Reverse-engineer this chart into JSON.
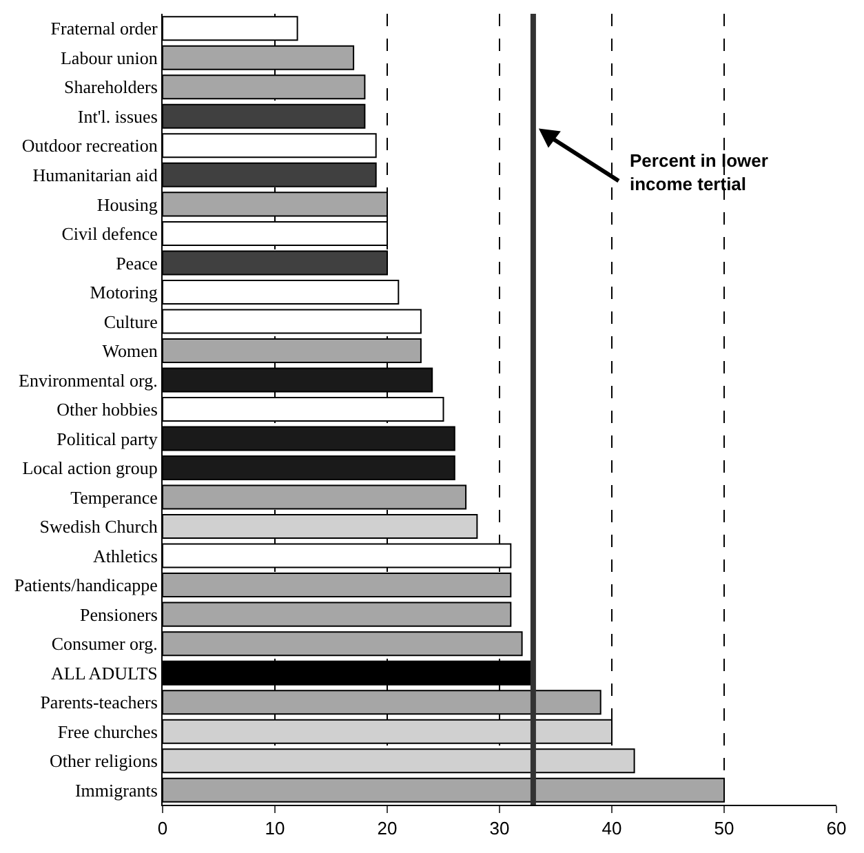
{
  "chart_data": {
    "type": "bar",
    "orientation": "horizontal",
    "categories": [
      "Fraternal order",
      "Labour union",
      "Shareholders",
      "Int'l. issues",
      "Outdoor recreation",
      "Humanitarian aid",
      "Housing",
      "Civil defence",
      "Peace",
      "Motoring",
      "Culture",
      "Women",
      "Environmental org.",
      "Other hobbies",
      "Political party",
      "Local action group",
      "Temperance",
      "Swedish Church",
      "Athletics",
      "Patients/handicappe",
      "Pensioners",
      "Consumer org.",
      "ALL ADULTS",
      "Parents-teachers",
      "Free churches",
      "Other religions",
      "Immigrants"
    ],
    "values": [
      12,
      17,
      18,
      18,
      19,
      19,
      20,
      20,
      20,
      21,
      23,
      23,
      24,
      25,
      26,
      26,
      27,
      28,
      31,
      31,
      31,
      32,
      33,
      39,
      40,
      42,
      50
    ],
    "colors": [
      "#ffffff",
      "#a6a6a6",
      "#a6a6a6",
      "#404040",
      "#ffffff",
      "#404040",
      "#a6a6a6",
      "#ffffff",
      "#404040",
      "#ffffff",
      "#ffffff",
      "#a6a6a6",
      "#1a1a1a",
      "#ffffff",
      "#1a1a1a",
      "#1a1a1a",
      "#a6a6a6",
      "#d0d0d0",
      "#ffffff",
      "#a6a6a6",
      "#a6a6a6",
      "#a6a6a6",
      "#000000",
      "#a6a6a6",
      "#d0d0d0",
      "#d0d0d0",
      "#a6a6a6"
    ],
    "xlim": [
      0,
      60
    ],
    "xticks": [
      0,
      10,
      20,
      30,
      40,
      50,
      60
    ],
    "grid": "x",
    "ref_lines": [
      {
        "axis": "x",
        "value": 33,
        "color": "#333333"
      }
    ],
    "annotations": [
      "Percent in lower income tertial"
    ]
  }
}
